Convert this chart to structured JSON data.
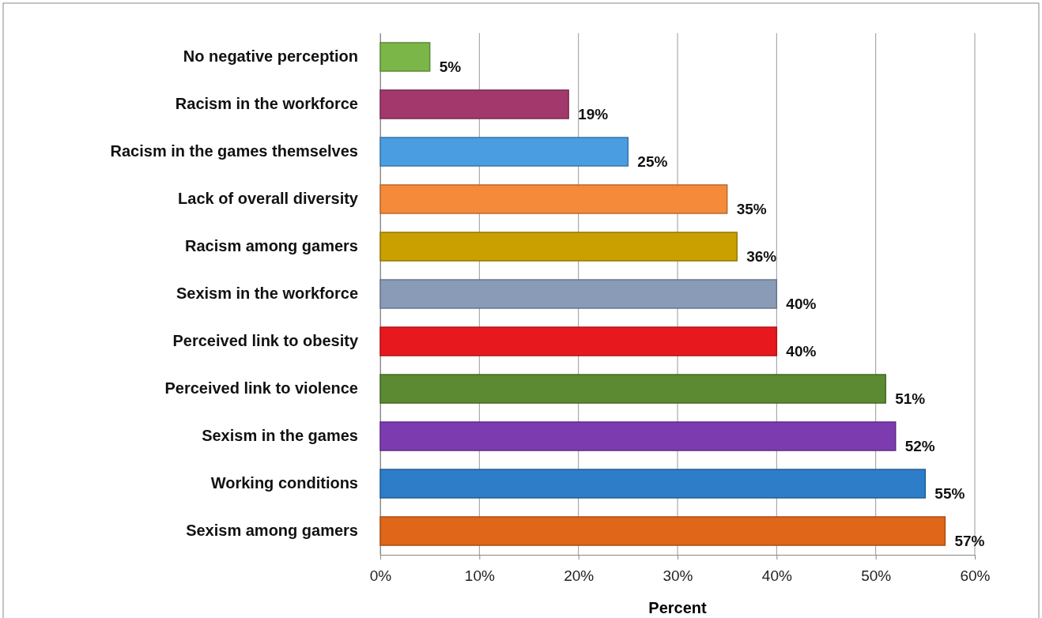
{
  "chart_data": {
    "type": "bar",
    "orientation": "horizontal",
    "xlabel": "Percent",
    "categories": [
      "No negative perception",
      "Racism in the workforce",
      "Racism in the games themselves",
      "Lack of overall diversity",
      "Racism among gamers",
      "Sexism in the workforce",
      "Perceived link to obesity",
      "Perceived link to violence",
      "Sexism in the games",
      "Working conditions",
      "Sexism among gamers"
    ],
    "values": [
      5,
      19,
      25,
      35,
      36,
      40,
      40,
      51,
      52,
      55,
      57
    ],
    "value_labels": [
      "5%",
      "19%",
      "25%",
      "35%",
      "36%",
      "40%",
      "40%",
      "51%",
      "52%",
      "55%",
      "57%"
    ],
    "colors": [
      "#7ab648",
      "#a3386c",
      "#4a9de0",
      "#f58a3b",
      "#c9a000",
      "#8a9bb8",
      "#e8191e",
      "#5b8a33",
      "#7d3bb0",
      "#2e7dc8",
      "#e0661a"
    ],
    "xlim": [
      0,
      60
    ],
    "xticks": [
      {
        "value": 0,
        "label": "0%"
      },
      {
        "value": 10,
        "label": "10%"
      },
      {
        "value": 20,
        "label": "20%"
      },
      {
        "value": 30,
        "label": "30%"
      },
      {
        "value": 40,
        "label": "40%"
      },
      {
        "value": 50,
        "label": "50%"
      },
      {
        "value": 60,
        "label": "60%"
      }
    ],
    "grid": "x"
  }
}
